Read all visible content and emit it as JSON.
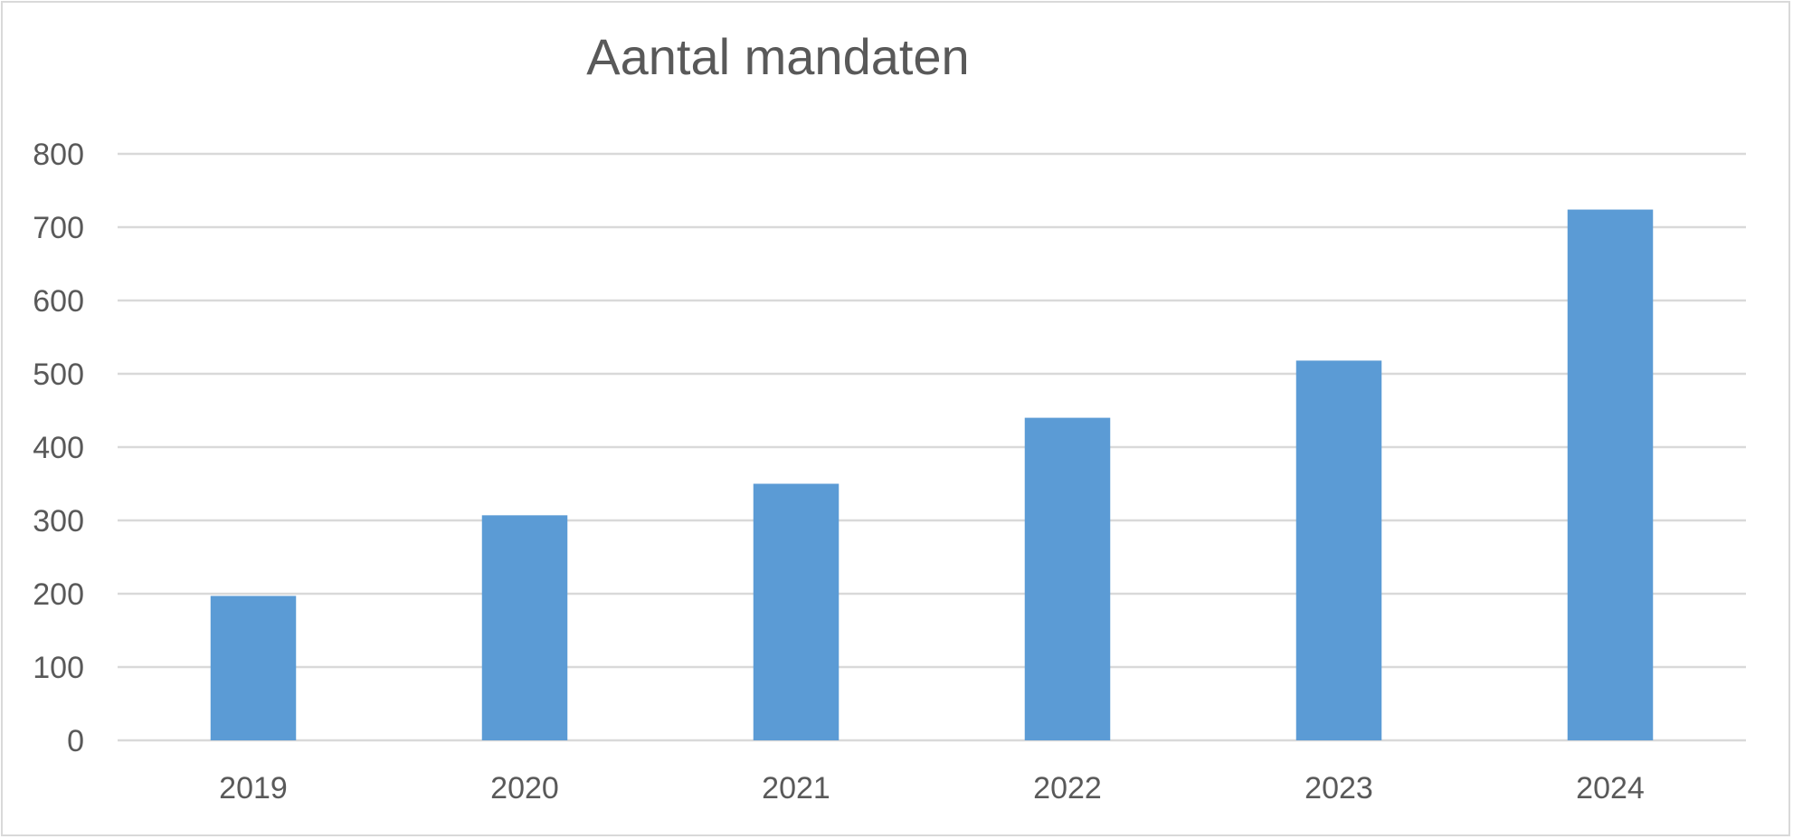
{
  "chart_data": {
    "type": "bar",
    "title": "Aantal mandaten",
    "categories": [
      "2019",
      "2020",
      "2021",
      "2022",
      "2023",
      "2024"
    ],
    "values": [
      197,
      307,
      350,
      440,
      518,
      724
    ],
    "ylim": [
      0,
      800
    ],
    "yticks": [
      0,
      100,
      200,
      300,
      400,
      500,
      600,
      700,
      800
    ],
    "grid": true,
    "legend": "none",
    "colors": {
      "bar": "#5b9bd5",
      "grid": "#d9d9d9",
      "text": "#595959"
    }
  }
}
